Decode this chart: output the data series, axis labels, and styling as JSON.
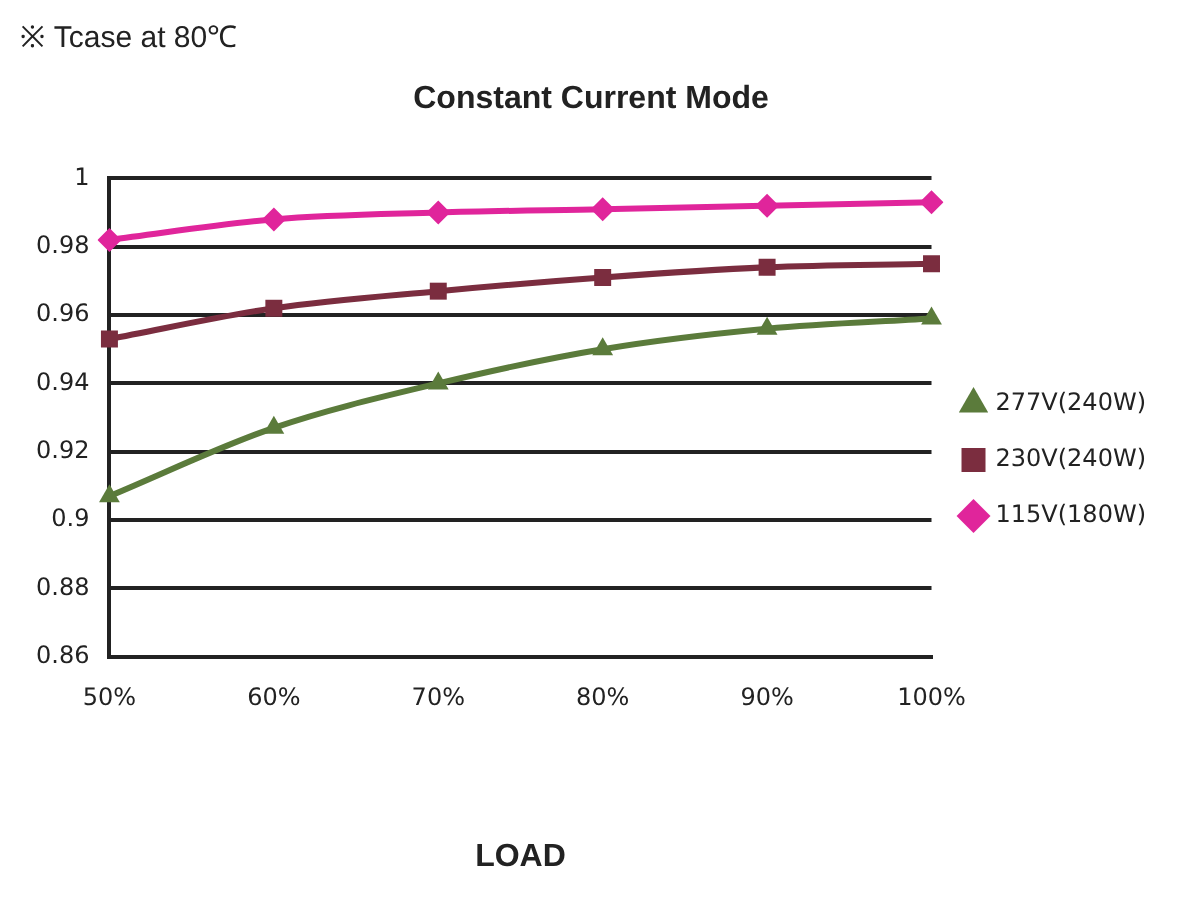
{
  "chart_data": {
    "type": "line",
    "title": "Constant Current Mode",
    "xlabel": "LOAD",
    "annotations": [
      "※ Tcase at 80℃"
    ],
    "categories": [
      "50%",
      "60%",
      "70%",
      "80%",
      "90%",
      "100%"
    ],
    "series": [
      {
        "name": "277V(240W)",
        "color": "#5b7b3b",
        "marker": "triangle",
        "values": [
          0.907,
          0.927,
          0.94,
          0.95,
          0.956,
          0.959
        ]
      },
      {
        "name": "230V(240W)",
        "color": "#7b2d3f",
        "marker": "square",
        "values": [
          0.953,
          0.962,
          0.967,
          0.971,
          0.974,
          0.975
        ]
      },
      {
        "name": "115V(180W)",
        "color": "#e0259b",
        "marker": "diamond",
        "values": [
          0.982,
          0.988,
          0.99,
          0.991,
          0.992,
          0.993
        ]
      }
    ],
    "ylim": [
      0.86,
      1
    ],
    "yticks": [
      0.86,
      0.88,
      0.9,
      0.92,
      0.94,
      0.96,
      0.98,
      1
    ],
    "grid": "y",
    "legend": "right",
    "line_style": "solid"
  }
}
